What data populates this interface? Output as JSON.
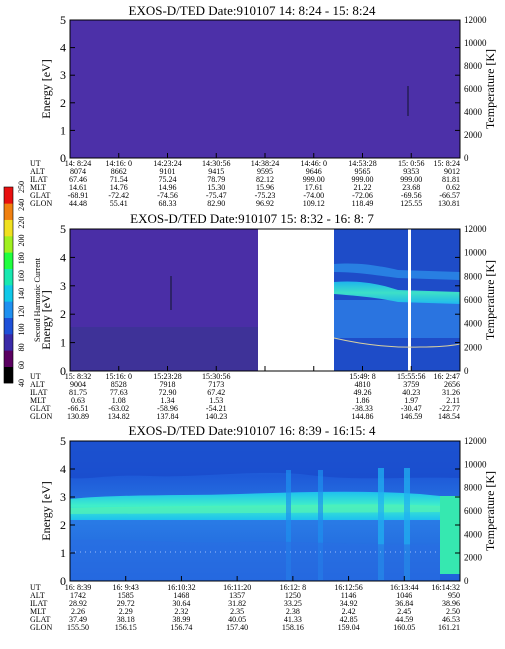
{
  "colors": {
    "frame": "#000000",
    "p1_bg": "#4a2ea6",
    "p2_bg": "#4a2ea6",
    "deep_blue": "#1846c8",
    "mid_blue": "#2a7ce6",
    "cyan": "#22e0f0",
    "green_cyan": "#38e8a8",
    "white": "#ffffff"
  },
  "colorbar": {
    "label": "Second Harmonic Current",
    "ticks": [
      "40",
      "60",
      "80",
      "100",
      "120",
      "140",
      "160",
      "180",
      "200",
      "220",
      "240",
      "250"
    ],
    "colors": [
      "#000000",
      "#5a0060",
      "#3a2aa8",
      "#1e50d8",
      "#1f90f0",
      "#10c8e8",
      "#18e8b0",
      "#20ff40",
      "#a0f020",
      "#f0e020",
      "#f08010",
      "#e81010"
    ]
  },
  "panels": [
    {
      "title": "EXOS-D/TED   Date:910107  14: 8:24 - 15: 8:24",
      "ylabel": "Energy [eV]",
      "y2label": "Temperature [K]",
      "yticks": [
        "0",
        "1",
        "2",
        "3",
        "4",
        "5"
      ],
      "y2ticks": [
        "0",
        "2000",
        "4000",
        "6000",
        "8000",
        "10000",
        "12000"
      ],
      "rows": [
        {
          "label": "UT",
          "values": [
            "14: 8:24",
            "14:16: 0",
            "14:23:24",
            "14:30:56",
            "14:38:24",
            "14:46: 0",
            "14:53:28",
            "15: 0:56",
            "15: 8:24"
          ]
        },
        {
          "label": "ALT",
          "values": [
            "8074",
            "8662",
            "9101",
            "9415",
            "9595",
            "9646",
            "9565",
            "9353",
            "9012"
          ]
        },
        {
          "label": "ILAT",
          "values": [
            "67.46",
            "71.54",
            "75.24",
            "78.79",
            "82.12",
            "999.00",
            "999.00",
            "999.00",
            "81.81"
          ]
        },
        {
          "label": "MLT",
          "values": [
            "14.61",
            "14.76",
            "14.96",
            "15.30",
            "15.96",
            "17.61",
            "21.22",
            "23.68",
            "0.62"
          ]
        },
        {
          "label": "GLAT",
          "values": [
            "-68.91",
            "-72.42",
            "-74.56",
            "-75.47",
            "-75.23",
            "-74.00",
            "-72.06",
            "-69.56",
            "-66.57"
          ]
        },
        {
          "label": "GLON",
          "values": [
            "44.48",
            "55.41",
            "68.33",
            "82.90",
            "96.92",
            "109.12",
            "118.49",
            "125.55",
            "130.81"
          ]
        }
      ]
    },
    {
      "title": "EXOS-D/TED   Date:910107  15: 8:32 - 16: 8: 7",
      "ylabel": "Energy [eV]",
      "y2label": "Temperature [K]",
      "yticks": [
        "0",
        "1",
        "2",
        "3",
        "4",
        "5"
      ],
      "y2ticks": [
        "0",
        "2000",
        "4000",
        "6000",
        "8000",
        "10000",
        "12000"
      ],
      "rows": [
        {
          "label": "UT",
          "values": [
            "15: 8:32",
            "15:16: 0",
            "15:23:28",
            "15:30:56",
            "",
            "",
            "15:49: 8",
            "15:55:56",
            "16: 2:47"
          ]
        },
        {
          "label": "ALT",
          "values": [
            "9004",
            "8528",
            "7918",
            "7173",
            "",
            "",
            "4810",
            "3759",
            "2656"
          ]
        },
        {
          "label": "ILAT",
          "values": [
            "81.75",
            "77.63",
            "72.90",
            "67.42",
            "",
            "",
            "49.26",
            "40.23",
            "31.26"
          ]
        },
        {
          "label": "MLT",
          "values": [
            "0.63",
            "1.08",
            "1.34",
            "1.53",
            "",
            "",
            "1.86",
            "1.97",
            "2.11"
          ]
        },
        {
          "label": "GLAT",
          "values": [
            "-66.51",
            "-63.02",
            "-58.96",
            "-54.21",
            "",
            "",
            "-38.33",
            "-30.47",
            "-22.77"
          ]
        },
        {
          "label": "GLON",
          "values": [
            "130.89",
            "134.82",
            "137.84",
            "140.23",
            "",
            "",
            "144.86",
            "146.59",
            "148.54"
          ]
        }
      ]
    },
    {
      "title": "EXOS-D/TED   Date:910107  16: 8:39 - 16:15: 4",
      "ylabel": "Energy [eV]",
      "y2label": "Temperature [K]",
      "yticks": [
        "0",
        "1",
        "2",
        "3",
        "4",
        "5"
      ],
      "y2ticks": [
        "0",
        "2000",
        "4000",
        "6000",
        "8000",
        "10000",
        "12000"
      ],
      "rows": [
        {
          "label": "UT",
          "values": [
            "16: 8:39",
            "16: 9:43",
            "16:10:32",
            "16:11:20",
            "16:12: 8",
            "16:12:56",
            "16:13:44",
            "16:14:32"
          ]
        },
        {
          "label": "ALT",
          "values": [
            "1742",
            "1585",
            "1468",
            "1357",
            "1250",
            "1146",
            "1046",
            "950"
          ]
        },
        {
          "label": "ILAT",
          "values": [
            "28.92",
            "29.72",
            "30.64",
            "31.82",
            "33.25",
            "34.92",
            "36.84",
            "38.96"
          ]
        },
        {
          "label": "MLT",
          "values": [
            "2.26",
            "2.29",
            "2.32",
            "2.35",
            "2.38",
            "2.42",
            "2.45",
            "2.50"
          ]
        },
        {
          "label": "GLAT",
          "values": [
            "37.49",
            "38.18",
            "38.99",
            "40.05",
            "41.33",
            "42.85",
            "44.59",
            "46.53"
          ]
        },
        {
          "label": "GLON",
          "values": [
            "155.50",
            "156.15",
            "156.74",
            "157.40",
            "158.16",
            "159.04",
            "160.05",
            "161.21"
          ]
        }
      ]
    }
  ],
  "chart_data": [
    {
      "type": "heatmap",
      "title": "EXOS-D/TED   Date:910107  14: 8:24 - 15: 8:24",
      "ylabel": "Energy [eV]",
      "y2label": "Temperature [K]",
      "ylim": [
        0,
        5
      ],
      "y2lim": [
        0,
        12000
      ],
      "x": [
        "14: 8:24",
        "14:16: 0",
        "14:23:24",
        "14:30:56",
        "14:38:24",
        "14:46: 0",
        "14:53:28",
        "15: 0:56",
        "15: 8:24"
      ]
    },
    {
      "type": "heatmap",
      "title": "EXOS-D/TED   Date:910107  15: 8:32 - 16: 8: 7",
      "ylabel": "Energy [eV]",
      "y2label": "Temperature [K]",
      "ylim": [
        0,
        5
      ],
      "y2lim": [
        0,
        12000
      ],
      "x": [
        "15: 8:32",
        "15:16: 0",
        "15:23:28",
        "15:30:56",
        "15:49: 8",
        "15:55:56",
        "16: 2:47"
      ]
    },
    {
      "type": "heatmap",
      "title": "EXOS-D/TED   Date:910107  16: 8:39 - 16:15: 4",
      "ylabel": "Energy [eV]",
      "y2label": "Temperature [K]",
      "ylim": [
        0,
        5
      ],
      "y2lim": [
        0,
        12000
      ],
      "x": [
        "16: 8:39",
        "16: 9:43",
        "16:10:32",
        "16:11:20",
        "16:12: 8",
        "16:12:56",
        "16:13:44",
        "16:14:32"
      ]
    }
  ]
}
